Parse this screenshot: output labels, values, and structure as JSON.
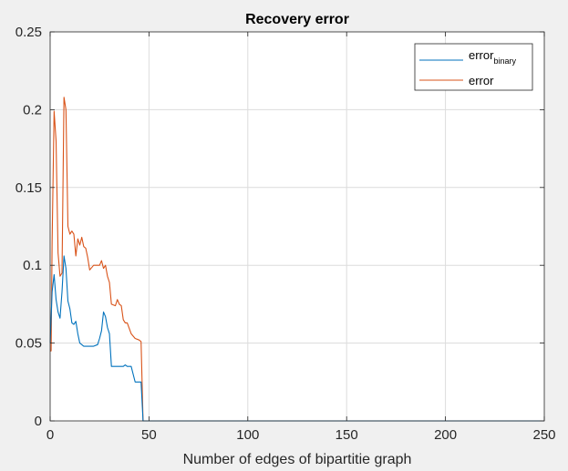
{
  "chart_data": {
    "type": "line",
    "title": "Recovery error",
    "xlabel": "Number of edges of bipartitie graph",
    "ylabel": "",
    "xlim": [
      0,
      250
    ],
    "ylim": [
      0,
      0.25
    ],
    "xticks": [
      0,
      50,
      100,
      150,
      200,
      250
    ],
    "xtick_labels": [
      "0",
      "50",
      "100",
      "150",
      "200",
      "250"
    ],
    "yticks": [
      0,
      0.05,
      0.1,
      0.15,
      0.2,
      0.25
    ],
    "ytick_labels": [
      "0",
      "0.05",
      "0.1",
      "0.15",
      "0.2",
      "0.25"
    ],
    "grid": true,
    "legend_position": "top-right",
    "series": [
      {
        "name": "error",
        "name_subscript": "binary",
        "color": "#0072BD",
        "x": [
          0,
          1,
          2,
          3,
          4,
          5,
          6,
          7,
          8,
          9,
          10,
          11,
          12,
          13,
          14,
          15,
          16,
          17,
          18,
          20,
          22,
          24,
          25,
          26,
          27,
          28,
          29,
          30,
          31,
          33,
          35,
          37,
          38,
          39,
          41,
          43,
          45,
          46,
          47,
          50,
          60,
          100,
          150,
          200,
          250
        ],
        "y": [
          0.05,
          0.083,
          0.094,
          0.078,
          0.07,
          0.066,
          0.083,
          0.106,
          0.098,
          0.077,
          0.072,
          0.063,
          0.062,
          0.064,
          0.056,
          0.05,
          0.049,
          0.048,
          0.048,
          0.048,
          0.048,
          0.049,
          0.053,
          0.058,
          0.07,
          0.067,
          0.06,
          0.056,
          0.035,
          0.035,
          0.035,
          0.035,
          0.036,
          0.035,
          0.035,
          0.025,
          0.025,
          0.025,
          0,
          0,
          0,
          0,
          0,
          0,
          0
        ]
      },
      {
        "name": "error",
        "name_subscript": "",
        "color": "#D95319",
        "x": [
          0,
          0.5,
          1,
          2,
          3,
          4,
          5,
          6,
          7,
          8,
          9,
          10,
          11,
          12,
          13,
          14,
          15,
          16,
          17,
          18,
          19,
          20,
          22,
          24,
          25,
          26,
          27,
          28,
          29,
          30,
          31,
          33,
          34,
          35,
          36,
          37,
          38,
          39,
          41,
          43,
          45,
          46,
          47,
          50,
          60,
          100,
          150,
          200,
          250
        ],
        "y": [
          0.045,
          0.045,
          0.115,
          0.199,
          0.18,
          0.108,
          0.093,
          0.095,
          0.208,
          0.2,
          0.125,
          0.12,
          0.122,
          0.12,
          0.106,
          0.117,
          0.113,
          0.118,
          0.112,
          0.111,
          0.105,
          0.097,
          0.1,
          0.1,
          0.1,
          0.103,
          0.098,
          0.1,
          0.093,
          0.089,
          0.075,
          0.074,
          0.078,
          0.075,
          0.074,
          0.065,
          0.063,
          0.063,
          0.056,
          0.053,
          0.052,
          0.051,
          0,
          0,
          0,
          0,
          0,
          0,
          0
        ]
      }
    ]
  }
}
